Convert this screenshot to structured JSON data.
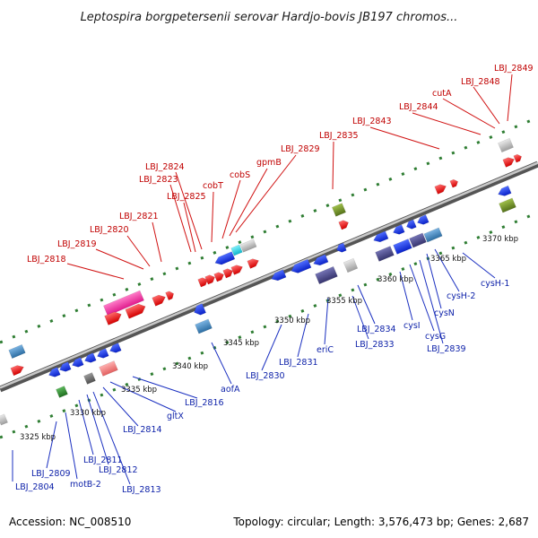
{
  "title": "Leptospira borgpetersenii serovar Hardjo-bovis JB197 chromos...",
  "footer": {
    "accession": "Accession: NC_008510",
    "topology": "Topology: circular; Length: 3,576,473 bp; Genes: 2,687"
  },
  "ticks": [
    "3325 kbp",
    "3330 kbp",
    "3335 kbp",
    "3340 kbp",
    "3345 kbp",
    "3350 kbp",
    "3355 kbp",
    "3360 kbp",
    "3365 kbp",
    "3370 kbp"
  ],
  "forward_labels": [
    "LBJ_2818",
    "LBJ_2819",
    "LBJ_2820",
    "LBJ_2821",
    "LBJ_2824",
    "LBJ_2823",
    "LBJ_2825",
    "cobT",
    "cobS",
    "gpmB",
    "LBJ_2829",
    "LBJ_2835",
    "LBJ_2843",
    "LBJ_2844",
    "cutA",
    "LBJ_2848",
    "LBJ_2849"
  ],
  "reverse_labels": [
    "LBJ_2804",
    "LBJ_2809",
    "motB-2",
    "LBJ_2811",
    "LBJ_2812",
    "LBJ_2813",
    "LBJ_2814",
    "gltX",
    "LBJ_2816",
    "aofA",
    "LBJ_2830",
    "LBJ_2831",
    "eriC",
    "LBJ_2833",
    "LBJ_2834",
    "cysI",
    "cysG",
    "LBJ_2839",
    "cysN",
    "cysH-2",
    "cysH-1"
  ],
  "colors": {
    "forward_gene": "#ee1111",
    "reverse_gene": "#1133dd",
    "forward_label": "#c00000",
    "reverse_label": "#0b1fa8",
    "backbone": "#8a8a8a",
    "tick_dots": "#2e7d32",
    "rna_pink": "#ee3fa5",
    "slate": "#4b4a8c",
    "steel": "#4a8fc4",
    "olive": "#6b8e23",
    "grey": "#bdbdbd",
    "cyan": "#22d3e6",
    "salmon": "#f08080",
    "green": "#2e8b2e"
  }
}
